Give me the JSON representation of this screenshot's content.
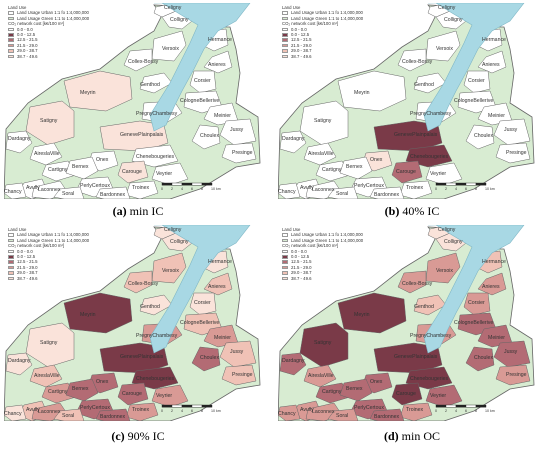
{
  "legend": {
    "title": "Land Use",
    "urban": "Land Usage Urban 1:1 fo 1:4,000,000",
    "green": "Land Usage Green 1:1 to 1:4,000,000",
    "cost_title": "CO₂ network cost [k€/100 m²]",
    "classes": [
      {
        "label": "0.0 - 0.0",
        "color": "#ffffff"
      },
      {
        "label": "0.0 - 12.5",
        "color": "#7a3a48"
      },
      {
        "label": "12.5 - 21.5",
        "color": "#b36b74"
      },
      {
        "label": "21.5 - 29.0",
        "color": "#d99a95"
      },
      {
        "label": "29.0 - 38.7",
        "color": "#f0c2b6"
      },
      {
        "label": "38.7 - 49.6",
        "color": "#fae3da"
      }
    ]
  },
  "colors": {
    "lake": "#a8d8e4",
    "urban": "#ffffff",
    "green": "#d8ecd2",
    "border": "#666666"
  },
  "places": [
    "Colligny",
    "Celigny",
    "Versoix",
    "Hermance",
    "CollexBossy",
    "Anieres",
    "Genthod",
    "Corsier",
    "Meyrin",
    "CologneBellerive",
    "Satigny",
    "PregnyChambesy",
    "Meinier",
    "Jussy",
    "Dardagny",
    "GenevePlainpalais",
    "Choulex",
    "Presinge",
    "ChenebougeriesGrounds",
    "AireslaVille",
    "Onex",
    "Carouge",
    "Cartigny",
    "Bernex",
    "Veyrier",
    "Avully",
    "Laconnex",
    "PerlyCertoux",
    "Troinex",
    "Chancy",
    "Soral",
    "Bardonnex"
  ],
  "place_labels": [
    "Colligny",
    "Celigny",
    "Versoix",
    "Hermance",
    "Collex-Bossy",
    "Anieres",
    "Genthod",
    "Corsier",
    "Meyrin",
    "CologneBellerive",
    "Satigny",
    "PregnyChambesy",
    "Meinier",
    "Jussy",
    "Dardagny",
    "GenevePlainpalais",
    "Choulex",
    "Presinge",
    "Chenebougeries",
    "AireslaVille",
    "Onex",
    "Carouge",
    "Cartigny",
    "Bernex",
    "Veyrier",
    "Avully",
    "Laconnex",
    "PerlyCertoux",
    "Troinex",
    "Chancy",
    "Soral",
    "Bardonnex"
  ],
  "scale_ticks": [
    "0",
    "2",
    "4",
    "6",
    "8",
    "10 km"
  ],
  "panels": [
    {
      "id": "a",
      "tag": "(a)",
      "title": "min IC",
      "fill": {
        "Meyrin": 5,
        "Satigny": 5,
        "GenevePlainpalais": 5,
        "Carouge": 5
      }
    },
    {
      "id": "b",
      "tag": "(b)",
      "title": "40% IC",
      "fill": {
        "GenevePlainpalais": 1,
        "ChenebougeriesGrounds": 1,
        "Carouge": 2,
        "Onex": 5
      }
    },
    {
      "id": "c",
      "tag": "(c)",
      "title": "90% IC",
      "fill": {
        "Meyrin": 1,
        "Satigny": 5,
        "GenevePlainpalais": 1,
        "ChenebougeriesGrounds": 1,
        "Carouge": 2,
        "Onex": 2,
        "Bernex": 2,
        "Cartigny": 3,
        "AireslaVille": 4,
        "Veyrier": 3,
        "PerlyCertoux": 2,
        "Troinex": 3,
        "Bardonnex": 2,
        "Laconnex": 3,
        "Soral": 4,
        "Avully": 4,
        "Chancy": 5,
        "Dardagny": 5,
        "Versoix": 4,
        "CollexBossy": 4,
        "Choulex": 2,
        "Meinier": 3,
        "Jussy": 4,
        "Presinge": 4,
        "PregnyChambesy": 3,
        "Genthod": 5,
        "CologneBellerive": 4,
        "Corsier": 5,
        "Anieres": 4,
        "Hermance": 5,
        "Celigny": 5,
        "Colligny": 5
      }
    },
    {
      "id": "d",
      "tag": "(d)",
      "title": "min OC",
      "fill": {
        "Meyrin": 1,
        "Satigny": 1,
        "GenevePlainpalais": 1,
        "ChenebougeriesGrounds": 1,
        "Carouge": 1,
        "Onex": 2,
        "Bernex": 2,
        "Cartigny": 2,
        "AireslaVille": 3,
        "Veyrier": 2,
        "PerlyCertoux": 2,
        "Troinex": 3,
        "Bardonnex": 2,
        "Laconnex": 3,
        "Soral": 3,
        "Avully": 3,
        "Chancy": 3,
        "Dardagny": 2,
        "Versoix": 3,
        "CollexBossy": 3,
        "Choulex": 2,
        "Meinier": 2,
        "Jussy": 2,
        "Presinge": 3,
        "PregnyChambesy": 3,
        "Genthod": 4,
        "CologneBellerive": 2,
        "Corsier": 3,
        "Anieres": 3,
        "Hermance": 4,
        "Celigny": 5,
        "Colligny": 5
      }
    }
  ]
}
